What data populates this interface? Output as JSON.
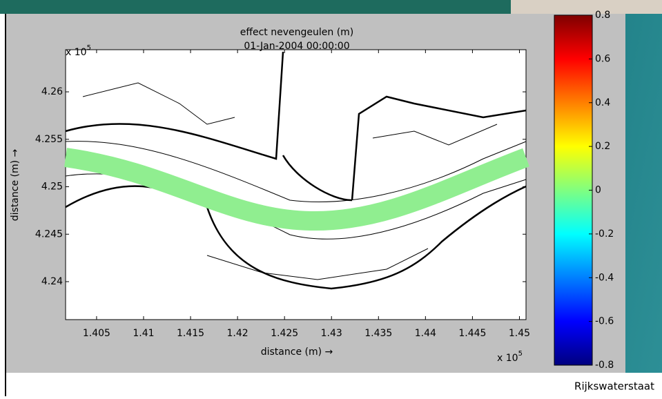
{
  "chart_data": {
    "type": "map",
    "title": "effect nevengeulen (m)",
    "subtitle": "01-Jan-2004 00:00:00",
    "x_label": "distance (m) →",
    "y_label": "distance (m) →",
    "scale_prefix": "x 10",
    "scale_exponent": "5",
    "xlim": [
      140170,
      145070
    ],
    "xticks": [
      {
        "value": 140500,
        "label": "1.405"
      },
      {
        "value": 141000,
        "label": "1.41"
      },
      {
        "value": 141500,
        "label": "1.415"
      },
      {
        "value": 142000,
        "label": "1.42"
      },
      {
        "value": 142500,
        "label": "1.425"
      },
      {
        "value": 143000,
        "label": "1.43"
      },
      {
        "value": 143500,
        "label": "1.435"
      },
      {
        "value": 144000,
        "label": "1.44"
      },
      {
        "value": 144500,
        "label": "1.445"
      },
      {
        "value": 145000,
        "label": "1.45"
      }
    ],
    "ylim": [
      423600,
      426444
    ],
    "yticks": [
      {
        "value": 424000,
        "label": "4.24"
      },
      {
        "value": 424500,
        "label": "4.245"
      },
      {
        "value": 425000,
        "label": "4.25"
      },
      {
        "value": 425500,
        "label": "4.255"
      },
      {
        "value": 426000,
        "label": "4.26"
      }
    ],
    "colorbar_lim": [
      -0.8,
      0.8
    ],
    "colorbar_ticks": [
      -0.8,
      -0.6,
      -0.4,
      -0.2,
      0,
      0.2,
      0.4,
      0.6,
      0.8
    ]
  },
  "footer": {
    "organization": "Rijkswaterstaat"
  }
}
